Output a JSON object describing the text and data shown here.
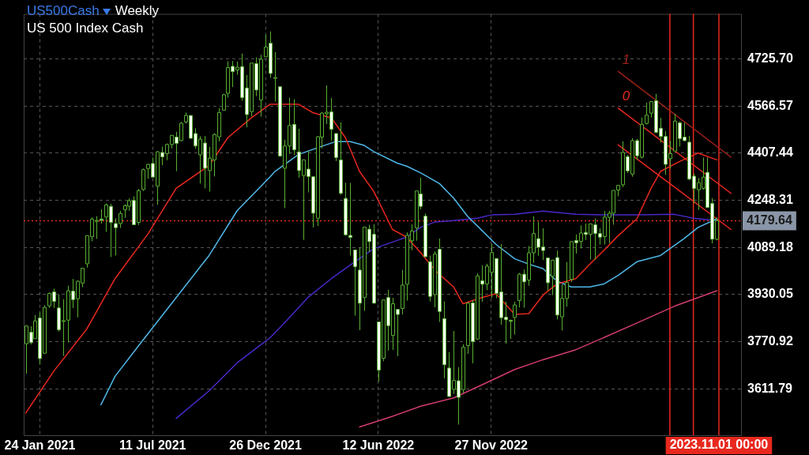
{
  "chart_data": {
    "type": "candlestick",
    "title": "US500Cash",
    "subtitle": "US 500 Index Cash",
    "annotations": [
      "Weekly",
      "1",
      "0"
    ],
    "color": "#58b030",
    "x": [
      "2021-01-03",
      "2021-01-10",
      "2021-01-17",
      "2021-01-24",
      "2021-01-31",
      "2021-02-07",
      "2021-02-14",
      "2021-02-21",
      "2021-02-28",
      "2021-03-07",
      "2021-03-14",
      "2021-03-21",
      "2021-03-28",
      "2021-04-04",
      "2021-04-11",
      "2021-04-18",
      "2021-04-25",
      "2021-05-02",
      "2021-05-09",
      "2021-05-16",
      "2021-05-23",
      "2021-05-30",
      "2021-06-06",
      "2021-06-13",
      "2021-06-20",
      "2021-06-27",
      "2021-07-04",
      "2021-07-11",
      "2021-07-18",
      "2021-07-25",
      "2021-08-01",
      "2021-08-08",
      "2021-08-15",
      "2021-08-22",
      "2021-08-29",
      "2021-09-05",
      "2021-09-12",
      "2021-09-19",
      "2021-09-26",
      "2021-10-03",
      "2021-10-10",
      "2021-10-17",
      "2021-10-24",
      "2021-10-31",
      "2021-11-07",
      "2021-11-14",
      "2021-11-21",
      "2021-11-28",
      "2021-12-05",
      "2021-12-12",
      "2021-12-19",
      "2021-12-26",
      "2022-01-02",
      "2022-01-09",
      "2022-01-16",
      "2022-01-23",
      "2022-01-30",
      "2022-02-06",
      "2022-02-13",
      "2022-02-20",
      "2022-02-27",
      "2022-03-06",
      "2022-03-13",
      "2022-03-20",
      "2022-03-27",
      "2022-04-03",
      "2022-04-10",
      "2022-04-17",
      "2022-04-24",
      "2022-05-01",
      "2022-05-08",
      "2022-05-15",
      "2022-05-22",
      "2022-05-29",
      "2022-06-05",
      "2022-06-12",
      "2022-06-19",
      "2022-06-26",
      "2022-07-03",
      "2022-07-10",
      "2022-07-17",
      "2022-07-24",
      "2022-07-31",
      "2022-08-07",
      "2022-08-14",
      "2022-08-21",
      "2022-08-28",
      "2022-09-04",
      "2022-09-11",
      "2022-09-18",
      "2022-09-25",
      "2022-10-02",
      "2022-10-09",
      "2022-10-16",
      "2022-10-23",
      "2022-10-30",
      "2022-11-06",
      "2022-11-13",
      "2022-11-20",
      "2022-11-27",
      "2022-12-04",
      "2022-12-11",
      "2022-12-18",
      "2022-12-25",
      "2023-01-01",
      "2023-01-08",
      "2023-01-15",
      "2023-01-22",
      "2023-01-29",
      "2023-02-05",
      "2023-02-12",
      "2023-02-19",
      "2023-02-26",
      "2023-03-05",
      "2023-03-12",
      "2023-03-19",
      "2023-03-26",
      "2023-04-02",
      "2023-04-09",
      "2023-04-16",
      "2023-04-23",
      "2023-04-30",
      "2023-05-07",
      "2023-05-14",
      "2023-05-21",
      "2023-05-28",
      "2023-06-04",
      "2023-06-11",
      "2023-06-18",
      "2023-06-25",
      "2023-07-02",
      "2023-07-09",
      "2023-07-16",
      "2023-07-23",
      "2023-07-30",
      "2023-08-06",
      "2023-08-13",
      "2023-08-20",
      "2023-08-27",
      "2023-09-03",
      "2023-09-10",
      "2023-09-17",
      "2023-09-24",
      "2023-10-01",
      "2023-10-08",
      "2023-10-15",
      "2023-10-22",
      "2023-10-29"
    ],
    "ohlc": [
      [
        3764,
        3827,
        3663,
        3824
      ],
      [
        3803,
        3823,
        3762,
        3768
      ],
      [
        3781,
        3861,
        3781,
        3841
      ],
      [
        3851,
        3870,
        3694,
        3714
      ],
      [
        3732,
        3894,
        3730,
        3887
      ],
      [
        3892,
        3937,
        3885,
        3934
      ],
      [
        3939,
        3950,
        3885,
        3907
      ],
      [
        3885,
        3930,
        3805,
        3811
      ],
      [
        3840,
        3915,
        3723,
        3842
      ],
      [
        3844,
        3960,
        3768,
        3943
      ],
      [
        3942,
        3983,
        3885,
        3913
      ],
      [
        3916,
        3978,
        3853,
        3975
      ],
      [
        3969,
        4020,
        3955,
        4019
      ],
      [
        4034,
        4130,
        4021,
        4129
      ],
      [
        4125,
        4191,
        4110,
        4185
      ],
      [
        4179,
        4195,
        4118,
        4180
      ],
      [
        4185,
        4218,
        4170,
        4181
      ],
      [
        4192,
        4238,
        4142,
        4233
      ],
      [
        4228,
        4236,
        4057,
        4174
      ],
      [
        4170,
        4188,
        4062,
        4156
      ],
      [
        4170,
        4213,
        4155,
        4204
      ],
      [
        4216,
        4234,
        4189,
        4230
      ],
      [
        4229,
        4255,
        4213,
        4247
      ],
      [
        4248,
        4262,
        4165,
        4166
      ],
      [
        4174,
        4287,
        4165,
        4281
      ],
      [
        4285,
        4356,
        4280,
        4352
      ],
      [
        4356,
        4372,
        4321,
        4370
      ],
      [
        4373,
        4393,
        4327,
        4327
      ],
      [
        4296,
        4415,
        4233,
        4412
      ],
      [
        4410,
        4430,
        4367,
        4395
      ],
      [
        4406,
        4440,
        4384,
        4437
      ],
      [
        4437,
        4469,
        4424,
        4468
      ],
      [
        4462,
        4480,
        4347,
        4441
      ],
      [
        4450,
        4513,
        4448,
        4509
      ],
      [
        4513,
        4545,
        4508,
        4535
      ],
      [
        4535,
        4536,
        4457,
        4458
      ],
      [
        4474,
        4492,
        4423,
        4432
      ],
      [
        4402,
        4465,
        4305,
        4455
      ],
      [
        4442,
        4466,
        4289,
        4357
      ],
      [
        4349,
        4429,
        4278,
        4391
      ],
      [
        4385,
        4475,
        4329,
        4471
      ],
      [
        4463,
        4560,
        4448,
        4545
      ],
      [
        4553,
        4608,
        4551,
        4605
      ],
      [
        4610,
        4718,
        4595,
        4697
      ],
      [
        4701,
        4719,
        4631,
        4683
      ],
      [
        4689,
        4717,
        4672,
        4698
      ],
      [
        4700,
        4744,
        4585,
        4595
      ],
      [
        4628,
        4672,
        4495,
        4538
      ],
      [
        4548,
        4713,
        4532,
        4712
      ],
      [
        4710,
        4731,
        4600,
        4621
      ],
      [
        4587,
        4740,
        4531,
        4725
      ],
      [
        4733,
        4808,
        4733,
        4766
      ],
      [
        4779,
        4819,
        4662,
        4677
      ],
      [
        4662,
        4749,
        4582,
        4663
      ],
      [
        4632,
        4632,
        4395,
        4398
      ],
      [
        4357,
        4453,
        4222,
        4432
      ],
      [
        4432,
        4595,
        4405,
        4501
      ],
      [
        4505,
        4590,
        4401,
        4419
      ],
      [
        4412,
        4490,
        4325,
        4349
      ],
      [
        4332,
        4385,
        4115,
        4385
      ],
      [
        4354,
        4416,
        4275,
        4329
      ],
      [
        4328,
        4329,
        4157,
        4205
      ],
      [
        4188,
        4465,
        4162,
        4463
      ],
      [
        4462,
        4546,
        4424,
        4543
      ],
      [
        4541,
        4637,
        4506,
        4546
      ],
      [
        4547,
        4594,
        4450,
        4488
      ],
      [
        4474,
        4475,
        4381,
        4393
      ],
      [
        4385,
        4512,
        4267,
        4272
      ],
      [
        4255,
        4308,
        4129,
        4132
      ],
      [
        4130,
        4307,
        4062,
        4123
      ],
      [
        4081,
        4081,
        3859,
        4024
      ],
      [
        4013,
        4090,
        3810,
        3901
      ],
      [
        3920,
        4158,
        3875,
        4158
      ],
      [
        4151,
        4166,
        4074,
        4109
      ],
      [
        4134,
        4168,
        3900,
        3901
      ],
      [
        3838,
        3838,
        3637,
        3675
      ],
      [
        3715,
        3913,
        3705,
        3912
      ],
      [
        3920,
        3946,
        3741,
        3825
      ],
      [
        3792,
        3919,
        3743,
        3899
      ],
      [
        3880,
        3880,
        3722,
        3863
      ],
      [
        3883,
        4013,
        3863,
        3962
      ],
      [
        3965,
        4140,
        3910,
        4130
      ],
      [
        4112,
        4167,
        4080,
        4145
      ],
      [
        4155,
        4280,
        4112,
        4280
      ],
      [
        4270,
        4325,
        4218,
        4228
      ],
      [
        4195,
        4204,
        4057,
        4058
      ],
      [
        4041,
        4062,
        3907,
        3924
      ],
      [
        3930,
        4076,
        3887,
        4067
      ],
      [
        4083,
        4119,
        3838,
        3873
      ],
      [
        3849,
        3907,
        3647,
        3693
      ],
      [
        3682,
        3736,
        3584,
        3586
      ],
      [
        3610,
        3807,
        3595,
        3640
      ],
      [
        3639,
        3685,
        3491,
        3583
      ],
      [
        3609,
        3762,
        3598,
        3752
      ],
      [
        3758,
        3905,
        3730,
        3901
      ],
      [
        3902,
        3912,
        3698,
        3771
      ],
      [
        3780,
        4002,
        3777,
        3993
      ],
      [
        3977,
        4029,
        3906,
        3965
      ],
      [
        3966,
        4034,
        3945,
        4026
      ],
      [
        4005,
        4101,
        3919,
        4072
      ],
      [
        4052,
        4052,
        3918,
        3934
      ],
      [
        3939,
        4101,
        3828,
        3852
      ],
      [
        3854,
        3906,
        3764,
        3845
      ],
      [
        3843,
        3846,
        3780,
        3840
      ],
      [
        3853,
        3906,
        3795,
        3895
      ],
      [
        3910,
        4003,
        3887,
        3999
      ],
      [
        3999,
        4015,
        3886,
        3973
      ],
      [
        3979,
        4094,
        3960,
        4071
      ],
      [
        4071,
        4195,
        4037,
        4136
      ],
      [
        4119,
        4176,
        4061,
        4090
      ],
      [
        4091,
        4154,
        4047,
        4079
      ],
      [
        4054,
        4055,
        3944,
        3970
      ],
      [
        3992,
        4048,
        3928,
        4046
      ],
      [
        4055,
        4079,
        3846,
        3861
      ],
      [
        3855,
        3964,
        3809,
        3917
      ],
      [
        3917,
        4040,
        3889,
        3971
      ],
      [
        3982,
        4110,
        3972,
        4109
      ],
      [
        4113,
        4133,
        4069,
        4105
      ],
      [
        4110,
        4164,
        4086,
        4138
      ],
      [
        4140,
        4170,
        4114,
        4133
      ],
      [
        4134,
        4170,
        4049,
        4169
      ],
      [
        4166,
        4187,
        4048,
        4136
      ],
      [
        4136,
        4154,
        4099,
        4124
      ],
      [
        4126,
        4212,
        4099,
        4192
      ],
      [
        4191,
        4213,
        4103,
        4205
      ],
      [
        4205,
        4282,
        4166,
        4282
      ],
      [
        4283,
        4299,
        4262,
        4299
      ],
      [
        4301,
        4448,
        4293,
        4410
      ],
      [
        4396,
        4402,
        4341,
        4348
      ],
      [
        4337,
        4458,
        4328,
        4450
      ],
      [
        4450,
        4456,
        4385,
        4399
      ],
      [
        4394,
        4528,
        4390,
        4505
      ],
      [
        4508,
        4578,
        4504,
        4536
      ],
      [
        4543,
        4582,
        4528,
        4582
      ],
      [
        4585,
        4608,
        4474,
        4478
      ],
      [
        4492,
        4527,
        4443,
        4464
      ],
      [
        4464,
        4482,
        4335,
        4370
      ],
      [
        4389,
        4449,
        4356,
        4406
      ],
      [
        4415,
        4541,
        4412,
        4516
      ],
      [
        4510,
        4515,
        4430,
        4457
      ],
      [
        4462,
        4511,
        4448,
        4450
      ],
      [
        4445,
        4466,
        4316,
        4320
      ],
      [
        4330,
        4338,
        4238,
        4288
      ],
      [
        4284,
        4324,
        4216,
        4308
      ],
      [
        4289,
        4393,
        4284,
        4327
      ],
      [
        4343,
        4393,
        4224,
        4224
      ],
      [
        4238,
        4256,
        4103,
        4117
      ],
      [
        4117,
        4190,
        4113,
        4179.64
      ]
    ],
    "colors": [
      "#000000",
      "#ffffff",
      "#000000",
      "#ffffff",
      "#000000",
      "#000000",
      "#ffffff",
      "#ffffff",
      "#000000",
      "#000000",
      "#ffffff",
      "#000000",
      "#000000",
      "#000000",
      "#000000",
      "#000000",
      "#ffffff",
      "#000000",
      "#ffffff",
      "#ffffff",
      "#000000",
      "#000000",
      "#000000",
      "#ffffff",
      "#000000",
      "#000000",
      "#000000",
      "#ffffff",
      "#000000",
      "#ffffff",
      "#000000",
      "#000000",
      "#ffffff",
      "#000000",
      "#000000",
      "#ffffff",
      "#ffffff",
      "#000000",
      "#ffffff",
      "#000000",
      "#000000",
      "#000000",
      "#000000",
      "#000000",
      "#ffffff",
      "#000000",
      "#ffffff",
      "#ffffff",
      "#000000",
      "#ffffff",
      "#000000",
      "#000000",
      "#ffffff",
      "#000000",
      "#ffffff",
      "#000000",
      "#000000",
      "#ffffff",
      "#ffffff",
      "#000000",
      "#ffffff",
      "#ffffff",
      "#000000",
      "#000000",
      "#000000",
      "#ffffff",
      "#ffffff",
      "#ffffff",
      "#ffffff",
      "#ffffff",
      "#ffffff",
      "#ffffff",
      "#000000",
      "#ffffff",
      "#ffffff",
      "#ffffff",
      "#000000",
      "#ffffff",
      "#000000",
      "#ffffff",
      "#000000",
      "#000000",
      "#000000",
      "#000000",
      "#ffffff",
      "#ffffff",
      "#ffffff",
      "#000000",
      "#ffffff",
      "#ffffff",
      "#ffffff",
      "#000000",
      "#ffffff",
      "#000000",
      "#000000",
      "#ffffff",
      "#000000",
      "#ffffff",
      "#000000",
      "#000000",
      "#ffffff",
      "#ffffff",
      "#ffffff",
      "#ffffff",
      "#000000",
      "#000000",
      "#ffffff",
      "#000000",
      "#000000",
      "#ffffff",
      "#ffffff",
      "#ffffff",
      "#000000",
      "#ffffff",
      "#000000",
      "#000000",
      "#000000",
      "#ffffff",
      "#000000",
      "#ffffff",
      "#000000",
      "#ffffff",
      "#ffffff",
      "#000000",
      "#000000",
      "#000000",
      "#000000",
      "#000000",
      "#ffffff",
      "#000000",
      "#ffffff",
      "#000000",
      "#000000",
      "#000000",
      "#ffffff",
      "#ffffff",
      "#ffffff",
      "#000000",
      "#000000",
      "#ffffff",
      "#ffffff",
      "#ffffff",
      "#ffffff",
      "#000000",
      "#000000",
      "#ffffff",
      "#ffffff",
      "#000000"
    ],
    "series": [
      {
        "type": "line",
        "color": "#e8281e",
        "x": [
          "2021-01-03",
          "2021-02-14",
          "2021-04-04",
          "2021-05-16",
          "2021-07-04",
          "2021-08-15",
          "2021-10-03",
          "2021-10-31",
          "2021-12-05",
          "2022-01-02",
          "2022-02-13",
          "2022-03-06",
          "2022-04-03",
          "2022-04-24",
          "2022-05-15",
          "2022-06-05",
          "2022-07-03",
          "2022-07-24",
          "2022-08-14",
          "2022-09-04",
          "2022-10-02",
          "2022-10-16",
          "2022-11-13",
          "2022-12-04",
          "2023-01-01",
          "2023-01-22",
          "2023-02-12",
          "2023-03-05",
          "2023-04-02",
          "2023-04-23",
          "2023-05-14",
          "2023-06-04",
          "2023-07-02",
          "2023-07-23",
          "2023-08-06",
          "2023-09-03",
          "2023-10-01",
          "2023-10-29"
        ],
        "values": [
          3530,
          3672,
          3814,
          3984,
          4135,
          4289,
          4366,
          4460,
          4527,
          4573,
          4573,
          4545,
          4527,
          4460,
          4346,
          4279,
          4150,
          4124,
          4072,
          4013,
          3956,
          3899,
          3920,
          3933,
          3863,
          3866,
          3928,
          3966,
          3984,
          4033,
          4080,
          4129,
          4186,
          4289,
          4346,
          4379,
          4408,
          4385
        ]
      },
      {
        "type": "line",
        "color": "#4fb8e8",
        "x": [
          "2021-04-25",
          "2021-05-16",
          "2021-06-20",
          "2021-08-15",
          "2021-10-03",
          "2021-11-14",
          "2022-01-02",
          "2022-01-09",
          "2022-02-13",
          "2022-03-20",
          "2022-04-10",
          "2022-05-01",
          "2022-05-22",
          "2022-06-05",
          "2022-07-10",
          "2022-07-24",
          "2022-08-14",
          "2022-09-11",
          "2022-10-02",
          "2022-10-23",
          "2022-11-13",
          "2022-12-04",
          "2023-01-01",
          "2023-01-22",
          "2023-02-12",
          "2023-03-05",
          "2023-03-26",
          "2023-04-23",
          "2023-05-14",
          "2023-06-04",
          "2023-07-02",
          "2023-08-06",
          "2023-08-20",
          "2023-09-10",
          "2023-10-01",
          "2023-10-29"
        ],
        "values": [
          3558,
          3654,
          3757,
          3920,
          4062,
          4214,
          4328,
          4346,
          4403,
          4431,
          4447,
          4447,
          4434,
          4413,
          4374,
          4364,
          4341,
          4305,
          4256,
          4194,
          4147,
          4100,
          4051,
          4033,
          4018,
          3976,
          3956,
          3956,
          3966,
          3995,
          4041,
          4062,
          4085,
          4119,
          4157,
          4186
        ]
      },
      {
        "type": "line",
        "color": "#4a28c8",
        "x": [
          "2021-08-15",
          "2021-10-03",
          "2021-11-14",
          "2022-01-02",
          "2022-01-23",
          "2022-02-27",
          "2022-04-03",
          "2022-05-08",
          "2022-06-05",
          "2022-07-10",
          "2022-07-24",
          "2022-08-14",
          "2022-09-04",
          "2022-10-02",
          "2022-11-06",
          "2022-11-27",
          "2023-01-01",
          "2023-02-12",
          "2023-04-02",
          "2023-05-14",
          "2023-07-02",
          "2023-08-27",
          "2023-09-24",
          "2023-10-29"
        ],
        "values": [
          3512,
          3605,
          3700,
          3785,
          3834,
          3920,
          3984,
          4041,
          4085,
          4113,
          4124,
          4157,
          4175,
          4180,
          4188,
          4199,
          4201,
          4212,
          4201,
          4199,
          4199,
          4201,
          4188,
          4180
        ]
      },
      {
        "type": "line",
        "color": "#d23c6e",
        "x": [
          "2022-05-15",
          "2022-07-03",
          "2022-08-14",
          "2022-10-02",
          "2022-11-13",
          "2023-01-01",
          "2023-02-12",
          "2023-04-02",
          "2023-05-14",
          "2023-07-02",
          "2023-08-27",
          "2023-10-01",
          "2023-10-29"
        ],
        "values": [
          3483,
          3519,
          3553,
          3581,
          3625,
          3677,
          3710,
          3744,
          3785,
          3834,
          3891,
          3920,
          3943
        ]
      },
      {
        "type": "line",
        "color": "#a0201a",
        "x": [
          "2023-06-04",
          "2023-11-19"
        ],
        "values": [
          4684,
          4394
        ]
      },
      {
        "type": "line",
        "color": "#e8281e",
        "x": [
          "2023-06-04",
          "2023-11-19"
        ],
        "values": [
          4560,
          4272
        ]
      },
      {
        "type": "line",
        "color": "#e8281e",
        "x": [
          "2023-06-04",
          "2023-11-19"
        ],
        "values": [
          4436,
          4150
        ]
      }
    ],
    "xlim": [
      "2020-12-31",
      "2023-12-04"
    ],
    "xticks": [
      {
        "value": "2021-01-24",
        "label": "24 Jan 2021"
      },
      {
        "value": "2021-07-11",
        "label": "11 Jul 2021"
      },
      {
        "value": "2021-12-26",
        "label": "26 Dec 2021"
      },
      {
        "value": "2022-06-12",
        "label": "12 Jun 2022"
      },
      {
        "value": "2022-11-27",
        "label": "27 Nov 2022"
      }
    ],
    "ylim": [
      3455,
      4878
    ],
    "yticks": [
      {
        "value": 3611.79,
        "label": "3611.79"
      },
      {
        "value": 3770.92,
        "label": "3770.92"
      },
      {
        "value": 3930.05,
        "label": "3930.05"
      },
      {
        "value": 4089.18,
        "label": "4089.18"
      },
      {
        "value": 4248.31,
        "label": "4248.31"
      },
      {
        "value": 4407.44,
        "label": "4407.44"
      },
      {
        "value": 4566.57,
        "label": "4566.57"
      },
      {
        "value": 4725.7,
        "label": "4725.70"
      }
    ],
    "grid": true,
    "ref_lines": [
      {
        "axis": "y",
        "value": 4179.64,
        "label": "4179.64",
        "color": "#e8281e",
        "line_style": "dotted"
      },
      {
        "axis": "x",
        "value": "2023-08-20",
        "color": "#e8281e"
      },
      {
        "axis": "x",
        "value": "2023-09-24",
        "color": "#e8281e"
      },
      {
        "axis": "x",
        "value": "2023-11-01",
        "label": "2023.11.01 00:00",
        "color": "#e8281e"
      }
    ]
  }
}
